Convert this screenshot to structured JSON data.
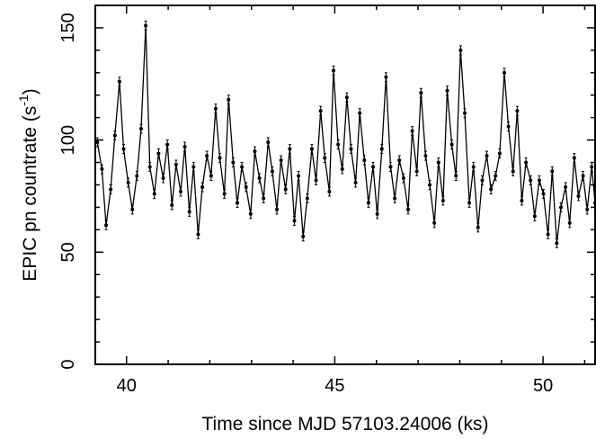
{
  "chart_data": {
    "type": "line",
    "xlabel": "Time since MJD 57103.24006 (ks)",
    "ylabel_main": "EPIC pn countrate (s",
    "ylabel_sup": "-1",
    "ylabel_close": ")",
    "xlim": [
      39.25,
      51.25
    ],
    "ylim": [
      0,
      160
    ],
    "xticks": [
      40,
      45,
      50
    ],
    "xtick_labels": [
      "40",
      "45",
      "50"
    ],
    "yticks": [
      0,
      50,
      100,
      150
    ],
    "ytick_labels": [
      "0",
      "50",
      "100",
      "150"
    ],
    "grid": false,
    "legend": "none",
    "markers": "points with error bars",
    "line_color": "#000000",
    "error_bar_halfwidth": 2,
    "series": [
      {
        "x": [
          39.3,
          39.41,
          39.51,
          39.62,
          39.72,
          39.83,
          39.93,
          40.04,
          40.14,
          40.25,
          40.35,
          40.46,
          40.56,
          40.67,
          40.77,
          40.88,
          40.98,
          41.09,
          41.19,
          41.3,
          41.4,
          41.51,
          41.61,
          41.72,
          41.82,
          41.93,
          42.03,
          42.14,
          42.24,
          42.35,
          42.45,
          42.56,
          42.66,
          42.77,
          42.87,
          42.98,
          43.08,
          43.19,
          43.29,
          43.4,
          43.5,
          43.61,
          43.71,
          43.82,
          43.92,
          44.03,
          44.13,
          44.24,
          44.34,
          44.45,
          44.55,
          44.66,
          44.76,
          44.87,
          44.97,
          45.08,
          45.18,
          45.29,
          45.39,
          45.5,
          45.6,
          45.71,
          45.81,
          45.92,
          46.02,
          46.13,
          46.23,
          46.34,
          46.44,
          46.55,
          46.65,
          46.76,
          46.86,
          46.97,
          47.07,
          47.18,
          47.28,
          47.39,
          47.49,
          47.6,
          47.7,
          47.81,
          47.91,
          48.02,
          48.12,
          48.23,
          48.33,
          48.44,
          48.54,
          48.65,
          48.75,
          48.86,
          48.96,
          49.07,
          49.17,
          49.28,
          49.38,
          49.49,
          49.59,
          49.7,
          49.8,
          49.91,
          50.01,
          50.12,
          50.22,
          50.33,
          50.43,
          50.54,
          50.64,
          50.75,
          50.85,
          50.96,
          51.06,
          51.17,
          51.25
        ],
        "y": [
          99,
          87,
          62,
          78,
          102,
          126,
          96,
          81,
          69,
          84,
          105,
          151,
          88,
          76,
          94,
          83,
          98,
          71,
          89,
          77,
          97,
          68,
          88,
          58,
          79,
          93,
          84,
          114,
          92,
          76,
          118,
          90,
          72,
          88,
          79,
          67,
          95,
          83,
          74,
          99,
          86,
          69,
          91,
          78,
          96,
          64,
          84,
          57,
          74,
          96,
          82,
          113,
          92,
          77,
          131,
          98,
          87,
          119,
          96,
          81,
          112,
          91,
          72,
          88,
          67,
          96,
          128,
          88,
          74,
          91,
          83,
          69,
          104,
          86,
          121,
          93,
          80,
          63,
          90,
          73,
          122,
          98,
          84,
          140,
          112,
          72,
          88,
          61,
          82,
          93,
          78,
          84,
          94,
          130,
          106,
          86,
          113,
          73,
          90,
          82,
          66,
          82,
          76,
          58,
          86,
          54,
          70,
          79,
          63,
          92,
          75,
          84,
          69,
          88,
          72
        ]
      }
    ]
  }
}
